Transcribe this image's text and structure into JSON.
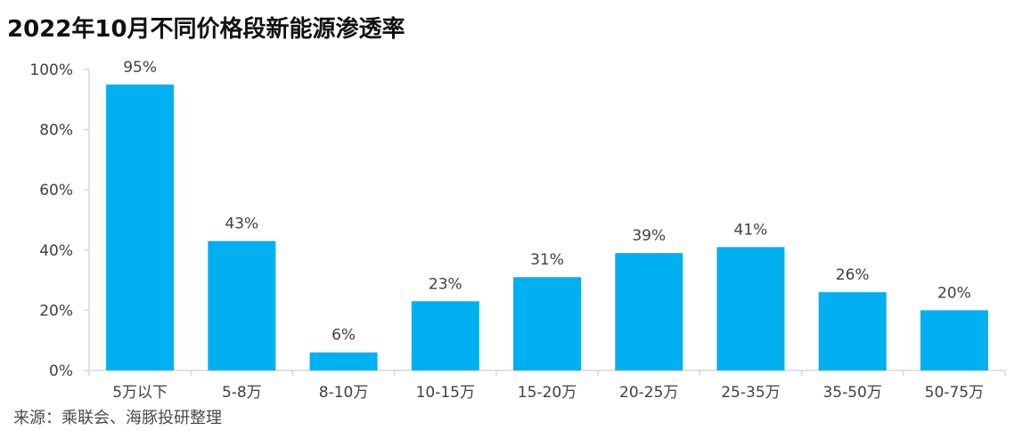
{
  "title": "2022年10月不同价格段新能源渗透率",
  "source": "来源：乘联会、海豚投研整理",
  "colors": {
    "bar": "#00B0F0",
    "axis": "#d9d9d9",
    "tick_label": "#404040",
    "data_label": "#404040"
  },
  "chart_data": {
    "type": "bar",
    "title": "2022年10月不同价格段新能源渗透率",
    "xlabel": "",
    "ylabel": "",
    "categories": [
      "5万以下",
      "5-8万",
      "8-10万",
      "10-15万",
      "15-20万",
      "20-25万",
      "25-35万",
      "35-50万",
      "50-75万"
    ],
    "values": [
      95,
      43,
      6,
      23,
      31,
      39,
      41,
      26,
      20
    ],
    "data_labels": [
      "95%",
      "43%",
      "6%",
      "23%",
      "31%",
      "39%",
      "41%",
      "26%",
      "20%"
    ],
    "ylim": [
      0,
      100
    ],
    "yticks": [
      0,
      20,
      40,
      60,
      80,
      100
    ],
    "ytick_labels": [
      "0%",
      "20%",
      "40%",
      "60%",
      "80%",
      "100%"
    ],
    "grid": false,
    "legend": "none"
  }
}
